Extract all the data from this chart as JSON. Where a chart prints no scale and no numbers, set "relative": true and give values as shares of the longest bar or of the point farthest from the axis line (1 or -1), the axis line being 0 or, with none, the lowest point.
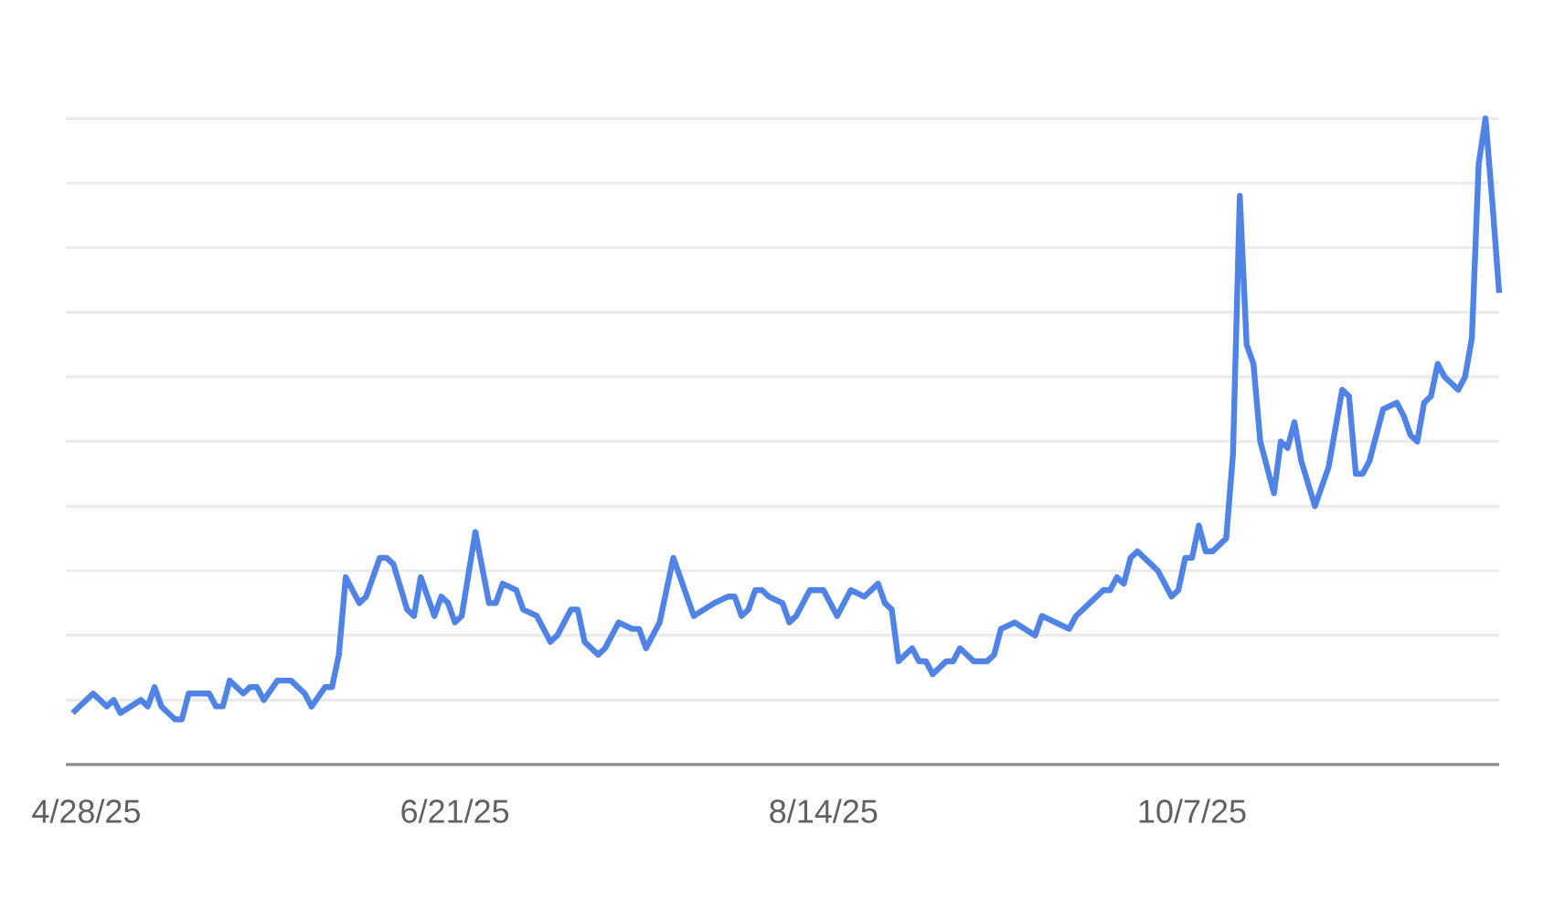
{
  "chart_data": {
    "type": "line",
    "relative": true,
    "grid": "y",
    "color": "#4f84e6",
    "xlim": [
      "2025-04-25",
      "2025-11-21"
    ],
    "xticks": [
      {
        "value": "2025-04-28",
        "label": "4/28/25"
      },
      {
        "value": "2025-06-21",
        "label": "6/21/25"
      },
      {
        "value": "2025-08-14",
        "label": "8/14/25"
      },
      {
        "value": "2025-10-07",
        "label": "10/7/25"
      }
    ],
    "x": [
      "2025-04-26",
      "2025-04-29",
      "2025-05-01",
      "2025-05-02",
      "2025-05-03",
      "2025-05-06",
      "2025-05-07",
      "2025-05-08",
      "2025-05-09",
      "2025-05-10",
      "2025-05-11",
      "2025-05-12",
      "2025-05-13",
      "2025-05-16",
      "2025-05-17",
      "2025-05-18",
      "2025-05-19",
      "2025-05-21",
      "2025-05-22",
      "2025-05-23",
      "2025-05-24",
      "2025-05-26",
      "2025-05-28",
      "2025-05-30",
      "2025-05-31",
      "2025-06-02",
      "2025-06-03",
      "2025-06-04",
      "2025-06-05",
      "2025-06-06",
      "2025-06-07",
      "2025-06-08",
      "2025-06-10",
      "2025-06-11",
      "2025-06-12",
      "2025-06-14",
      "2025-06-15",
      "2025-06-16",
      "2025-06-18",
      "2025-06-19",
      "2025-06-20",
      "2025-06-21",
      "2025-06-22",
      "2025-06-24",
      "2025-06-26",
      "2025-06-27",
      "2025-06-28",
      "2025-06-30",
      "2025-07-01",
      "2025-07-03",
      "2025-07-05",
      "2025-07-06",
      "2025-07-08",
      "2025-07-09",
      "2025-07-10",
      "2025-07-12",
      "2025-07-13",
      "2025-07-15",
      "2025-07-17",
      "2025-07-18",
      "2025-07-19",
      "2025-07-21",
      "2025-07-23",
      "2025-07-26",
      "2025-07-29",
      "2025-07-31",
      "2025-08-01",
      "2025-08-02",
      "2025-08-03",
      "2025-08-04",
      "2025-08-05",
      "2025-08-06",
      "2025-08-08",
      "2025-08-09",
      "2025-08-10",
      "2025-08-12",
      "2025-08-14",
      "2025-08-16",
      "2025-08-18",
      "2025-08-20",
      "2025-08-22",
      "2025-08-23",
      "2025-08-24",
      "2025-08-25",
      "2025-08-27",
      "2025-08-28",
      "2025-08-29",
      "2025-08-30",
      "2025-09-01",
      "2025-09-02",
      "2025-09-03",
      "2025-09-05",
      "2025-09-07",
      "2025-09-08",
      "2025-09-09",
      "2025-09-11",
      "2025-09-14",
      "2025-09-15",
      "2025-09-17",
      "2025-09-19",
      "2025-09-20",
      "2025-09-22",
      "2025-09-24",
      "2025-09-25",
      "2025-09-26",
      "2025-09-27",
      "2025-09-28",
      "2025-09-29",
      "2025-10-01",
      "2025-10-02",
      "2025-10-04",
      "2025-10-05",
      "2025-10-06",
      "2025-10-07",
      "2025-10-08",
      "2025-10-09",
      "2025-10-10",
      "2025-10-12",
      "2025-10-13",
      "2025-10-14",
      "2025-10-15",
      "2025-10-16",
      "2025-10-17",
      "2025-10-19",
      "2025-10-20",
      "2025-10-21",
      "2025-10-22",
      "2025-10-23",
      "2025-10-25",
      "2025-10-27",
      "2025-10-29",
      "2025-10-30",
      "2025-10-31",
      "2025-11-01",
      "2025-11-02",
      "2025-11-04",
      "2025-11-06",
      "2025-11-07",
      "2025-11-08",
      "2025-11-09",
      "2025-11-10",
      "2025-11-11",
      "2025-11-12",
      "2025-11-13",
      "2025-11-15",
      "2025-11-16",
      "2025-11-17",
      "2025-11-18",
      "2025-11-19",
      "2025-11-20",
      "2025-11-21"
    ],
    "values": [
      0.08,
      0.11,
      0.09,
      0.1,
      0.08,
      0.1,
      0.09,
      0.12,
      0.09,
      0.08,
      0.07,
      0.07,
      0.11,
      0.11,
      0.09,
      0.09,
      0.13,
      0.11,
      0.12,
      0.12,
      0.1,
      0.13,
      0.13,
      0.11,
      0.09,
      0.12,
      0.12,
      0.17,
      0.29,
      0.27,
      0.25,
      0.26,
      0.32,
      0.32,
      0.31,
      0.24,
      0.23,
      0.29,
      0.23,
      0.26,
      0.25,
      0.22,
      0.23,
      0.36,
      0.25,
      0.25,
      0.28,
      0.27,
      0.24,
      0.23,
      0.19,
      0.2,
      0.24,
      0.24,
      0.19,
      0.17,
      0.18,
      0.22,
      0.21,
      0.21,
      0.18,
      0.22,
      0.32,
      0.23,
      0.25,
      0.26,
      0.26,
      0.23,
      0.24,
      0.27,
      0.27,
      0.26,
      0.25,
      0.22,
      0.23,
      0.27,
      0.27,
      0.23,
      0.27,
      0.26,
      0.28,
      0.25,
      0.24,
      0.16,
      0.18,
      0.16,
      0.16,
      0.14,
      0.16,
      0.16,
      0.18,
      0.16,
      0.16,
      0.17,
      0.21,
      0.22,
      0.2,
      0.23,
      0.22,
      0.21,
      0.23,
      0.25,
      0.27,
      0.27,
      0.29,
      0.28,
      0.32,
      0.33,
      0.31,
      0.3,
      0.26,
      0.27,
      0.32,
      0.32,
      0.37,
      0.33,
      0.33,
      0.35,
      0.48,
      0.88,
      0.65,
      0.62,
      0.5,
      0.42,
      0.5,
      0.49,
      0.53,
      0.47,
      0.4,
      0.46,
      0.58,
      0.57,
      0.45,
      0.45,
      0.47,
      0.55,
      0.56,
      0.54,
      0.51,
      0.5,
      0.56,
      0.57,
      0.62,
      0.6,
      0.58,
      0.6,
      0.66,
      0.93,
      1.0,
      0.87,
      0.73
    ]
  }
}
